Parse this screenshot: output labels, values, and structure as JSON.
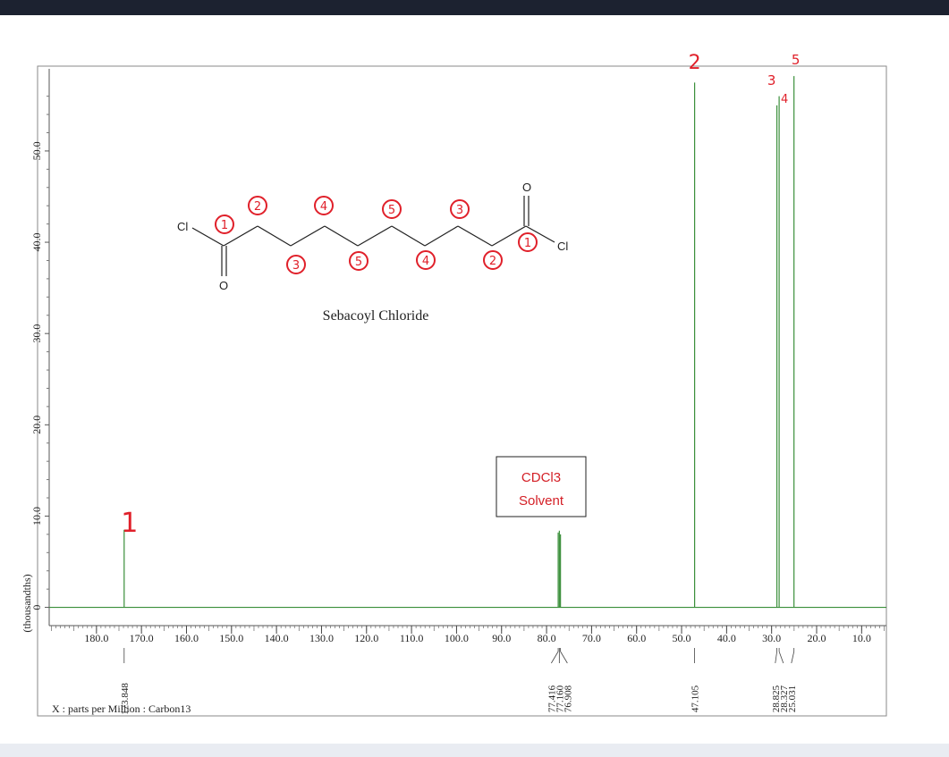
{
  "chart_data": {
    "type": "line",
    "x_axis": {
      "label": "X : parts per Million : Carbon13",
      "range": [
        190.5,
        4.5
      ],
      "reversed": true,
      "ticks": [
        "180.0",
        "170.0",
        "160.0",
        "150.0",
        "140.0",
        "130.0",
        "120.0",
        "110.0",
        "100.0",
        "90.0",
        "80.0",
        "70.0",
        "60.0",
        "50.0",
        "40.0",
        "30.0",
        "20.0",
        "10.0"
      ]
    },
    "y_axis": {
      "label": "(thousandths)",
      "range": [
        -2,
        59
      ],
      "ticks": [
        "0",
        "10.0",
        "20.0",
        "30.0",
        "40.0",
        "50.0"
      ]
    },
    "series": [
      {
        "peaks": [
          {
            "x": 173.848,
            "y": 8.5
          },
          {
            "x": 77.416,
            "y": 8.2
          },
          {
            "x": 77.16,
            "y": 8.4
          },
          {
            "x": 76.908,
            "y": 8.0
          },
          {
            "x": 47.105,
            "y": 57.5
          },
          {
            "x": 28.825,
            "y": 55.0
          },
          {
            "x": 28.327,
            "y": 56.0
          },
          {
            "x": 25.031,
            "y": 58.2
          }
        ]
      }
    ],
    "peak_labels": [
      {
        "label": "173.848",
        "x": 173.848
      },
      {
        "label": "77.416",
        "x": 77.416
      },
      {
        "label": "77.160",
        "x": 77.16
      },
      {
        "label": "76.908",
        "x": 76.908
      },
      {
        "label": "47.105",
        "x": 47.105
      },
      {
        "label": "28.825",
        "x": 28.825
      },
      {
        "label": "28.327",
        "x": 28.327
      },
      {
        "label": "25.031",
        "x": 25.031
      }
    ],
    "peak_annotations": [
      {
        "text": "1",
        "x": 173.848
      },
      {
        "text": "2",
        "x": 47.105
      },
      {
        "text": "3",
        "x": 28.825
      },
      {
        "text": "4",
        "x": 28.327
      },
      {
        "text": "5",
        "x": 25.031
      }
    ],
    "grid": false,
    "line_color": "#3a8f3a",
    "annotation_color": "#e0202a"
  },
  "structure": {
    "compound_name": "Sebacoyl Chloride",
    "atom_labels": {
      "cl_left": "Cl",
      "cl_right": "Cl",
      "o_left": "O",
      "o_right": "O"
    },
    "carbon_numbers": [
      "1",
      "2",
      "3",
      "4",
      "5",
      "5",
      "4",
      "3",
      "2",
      "1"
    ]
  },
  "solvent_box": {
    "line1": "CDCl3",
    "line2": "Solvent"
  }
}
